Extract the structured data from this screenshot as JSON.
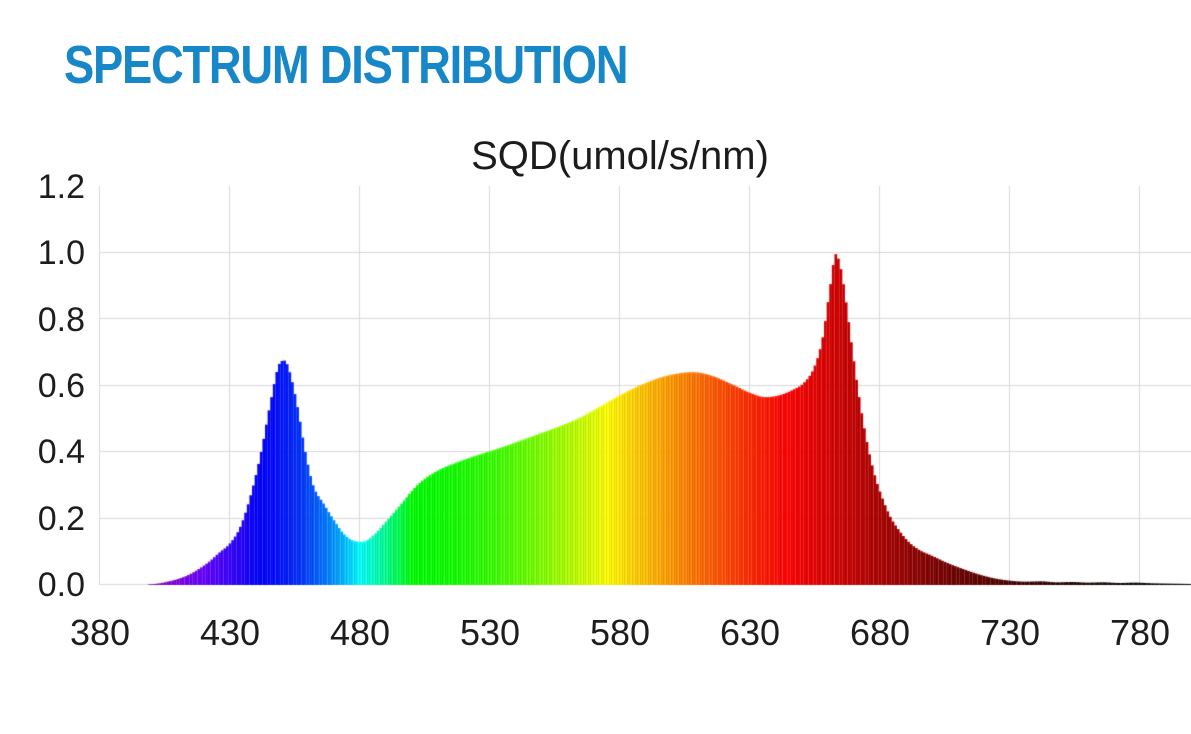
{
  "header": {
    "title": "SPECTRUM DISTRIBUTION",
    "color": "#1787c8"
  },
  "chart_data": {
    "type": "area",
    "title": "SQD(umol/s/nm)",
    "xlabel": "",
    "ylabel": "",
    "x_ticks": [
      "380",
      "430",
      "480",
      "530",
      "580",
      "630",
      "680",
      "730",
      "780"
    ],
    "y_ticks": [
      "0.0",
      "0.2",
      "0.4",
      "0.6",
      "0.8",
      "1.0",
      "1.2"
    ],
    "xlim": [
      380,
      800
    ],
    "ylim": [
      0,
      1.2
    ],
    "grid": true,
    "grid_color": "#d9d9d9",
    "legend": "none",
    "color_mode": "spectral-wavelength-fill",
    "series": [
      {
        "name": "SQD",
        "x": [
          380,
          395,
          402,
          406,
          410,
          414,
          418,
          422,
          426,
          430,
          434,
          438,
          442,
          446,
          449,
          451,
          453,
          456,
          459,
          462,
          466,
          470,
          474,
          478,
          481,
          485,
          490,
          496,
          502,
          509,
          517,
          525,
          533,
          541,
          549,
          557,
          565,
          573,
          581,
          589,
          596,
          603,
          608,
          615,
          624,
          630,
          636,
          641,
          646,
          651,
          655,
          658,
          661,
          663,
          665,
          667,
          669,
          672,
          675,
          678,
          681,
          684,
          687,
          691,
          695,
          700,
          706,
          712,
          718,
          724,
          730,
          736,
          742,
          748,
          754,
          760,
          766,
          772,
          778,
          785,
          792,
          800
        ],
        "values": [
          0,
          0.001,
          0.004,
          0.01,
          0.018,
          0.03,
          0.048,
          0.07,
          0.098,
          0.125,
          0.175,
          0.27,
          0.4,
          0.565,
          0.665,
          0.675,
          0.64,
          0.535,
          0.4,
          0.3,
          0.245,
          0.195,
          0.152,
          0.132,
          0.13,
          0.148,
          0.19,
          0.245,
          0.3,
          0.34,
          0.368,
          0.39,
          0.41,
          0.432,
          0.455,
          0.478,
          0.505,
          0.54,
          0.575,
          0.605,
          0.625,
          0.637,
          0.64,
          0.63,
          0.6,
          0.578,
          0.565,
          0.57,
          0.585,
          0.61,
          0.66,
          0.745,
          0.905,
          0.995,
          0.95,
          0.85,
          0.73,
          0.565,
          0.43,
          0.33,
          0.26,
          0.205,
          0.168,
          0.13,
          0.106,
          0.088,
          0.066,
          0.048,
          0.032,
          0.02,
          0.013,
          0.01,
          0.011,
          0.008,
          0.009,
          0.007,
          0.008,
          0.006,
          0.007,
          0.005,
          0.004,
          0.003
        ]
      }
    ]
  }
}
